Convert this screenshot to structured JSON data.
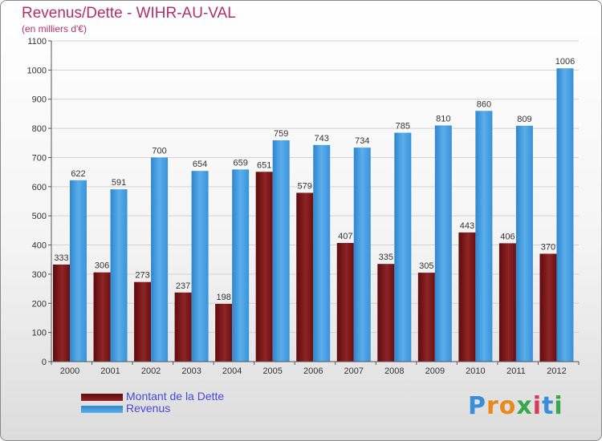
{
  "title": "Revenus/Dette - WIHR-AU-VAL",
  "subtitle": "(en milliers d'€)",
  "brand": {
    "text": "Proxiti",
    "letters": [
      "P",
      "r",
      "o",
      "x",
      "i",
      "t",
      "i"
    ],
    "colors": [
      "#3a8ed8",
      "#e8891b",
      "#e8891b",
      "#3aa84a",
      "#d83a5a",
      "#3a8ed8",
      "#3aa84a"
    ]
  },
  "chart_data": {
    "type": "bar",
    "title": "Revenus/Dette - WIHR-AU-VAL",
    "ylabel": "(en milliers d'€)",
    "categories": [
      "2000",
      "2001",
      "2002",
      "2003",
      "2004",
      "2005",
      "2006",
      "2007",
      "2008",
      "2009",
      "2010",
      "2011",
      "2012"
    ],
    "series": [
      {
        "name": "Montant de la Dette",
        "color": "#7a1416",
        "values": [
          333,
          306,
          273,
          237,
          198,
          651,
          579,
          407,
          335,
          305,
          443,
          406,
          370
        ]
      },
      {
        "name": "Revenus",
        "color": "#3f9ae0",
        "values": [
          622,
          591,
          700,
          654,
          659,
          759,
          743,
          734,
          785,
          810,
          860,
          809,
          1006
        ]
      }
    ],
    "ylim": [
      0,
      1100
    ],
    "yticks": [
      "0",
      "100",
      "200",
      "300",
      "400",
      "500",
      "600",
      "700",
      "800",
      "900",
      "1000",
      "1100"
    ],
    "grid": true,
    "legend": "bottom-left"
  }
}
